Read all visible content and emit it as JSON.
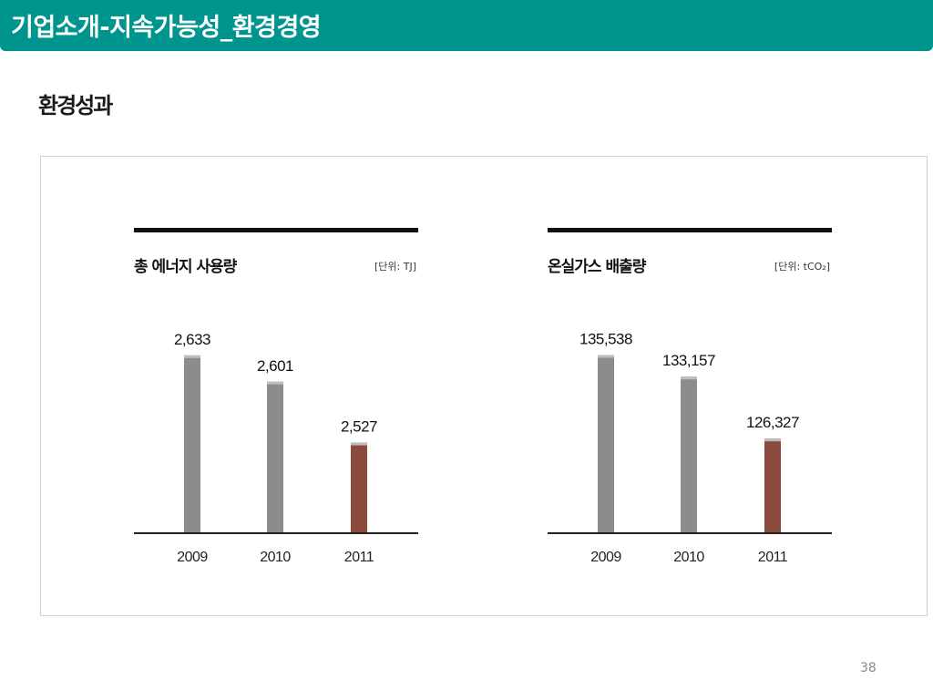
{
  "header": {
    "title": "기업소개-지속가능성_환경경영"
  },
  "section": {
    "title": "환경성과"
  },
  "page_number": "38",
  "colors": {
    "header_bg": "#00948f",
    "bar_gray": "#8c8c8c",
    "bar_highlight": "#8b4a3c"
  },
  "chart_data": [
    {
      "type": "bar",
      "title": "총 에너지 사용량",
      "unit_label": "[단위: TJ]",
      "categories": [
        "2009",
        "2010",
        "2011"
      ],
      "values": [
        2633,
        2601,
        2527
      ],
      "value_labels": [
        "2,633",
        "2,601",
        "2,527"
      ],
      "highlight_index": 2,
      "ylim": [
        2418,
        2655
      ],
      "grid": false
    },
    {
      "type": "bar",
      "title": "온실가스 배출량",
      "unit_label": "[단위: tCO₂]",
      "categories": [
        "2009",
        "2010",
        "2011"
      ],
      "values": [
        135538,
        133157,
        126327
      ],
      "value_labels": [
        "135,538",
        "133,157",
        "126,327"
      ],
      "highlight_index": 2,
      "ylim": [
        116000,
        137500
      ],
      "grid": false
    }
  ]
}
